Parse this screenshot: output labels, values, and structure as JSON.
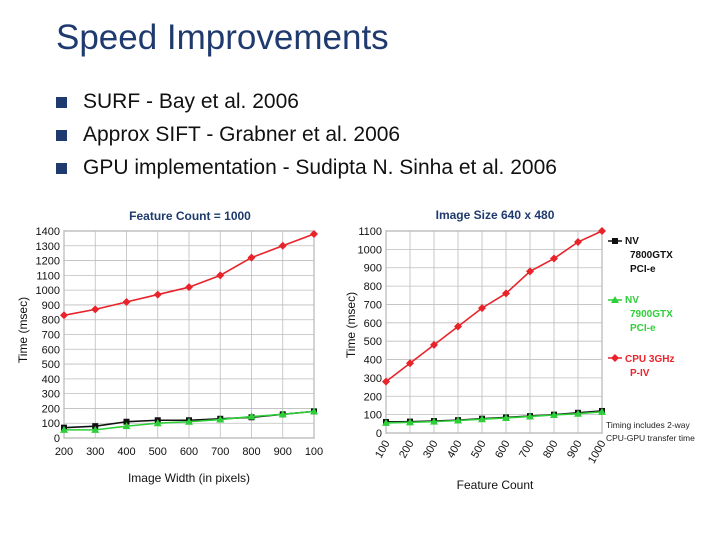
{
  "slide": {
    "title": "Speed Improvements",
    "bullets": [
      "SURF - Bay et al. 2006",
      "Approx SIFT - Grabner et al. 2006",
      "GPU implementation - Sudipta N. Sinha et al. 2006"
    ],
    "colors": {
      "title": "#1f3a6e",
      "bullet": "#1f3a6e",
      "red": "#e8232a",
      "black": "#111111",
      "green": "#2fcf3a"
    }
  },
  "chart_data": [
    {
      "type": "line",
      "title": "Feature Count = 1000",
      "xlabel": "Image Width (in pixels)",
      "ylabel": "Time (msec)",
      "categories": [
        "200",
        "300",
        "400",
        "500",
        "600",
        "700",
        "800",
        "900",
        "100"
      ],
      "yticks": [
        "0",
        "100",
        "200",
        "300",
        "400",
        "500",
        "600",
        "700",
        "800",
        "900",
        "1000",
        "1100",
        "1200",
        "1300",
        "1400"
      ],
      "ylim": [
        0,
        1400
      ],
      "grid": true,
      "series": [
        {
          "color": "#e8232a",
          "marker": "diamond",
          "values": [
            830,
            870,
            920,
            970,
            1020,
            1100,
            1220,
            1300,
            1380
          ]
        },
        {
          "color": "#111111",
          "marker": "square",
          "values": [
            70,
            80,
            110,
            120,
            120,
            130,
            140,
            160,
            180
          ]
        },
        {
          "color": "#2fcf3a",
          "marker": "triangle",
          "values": [
            55,
            55,
            80,
            100,
            110,
            125,
            145,
            160,
            180
          ]
        }
      ]
    },
    {
      "type": "line",
      "title": "Image Size 640 x 480",
      "xlabel": "Feature Count",
      "ylabel": "Time (msec)",
      "categories": [
        "100",
        "200",
        "300",
        "400",
        "500",
        "600",
        "700",
        "800",
        "900",
        "1000"
      ],
      "yticks": [
        "0",
        "100",
        "200",
        "300",
        "400",
        "500",
        "600",
        "700",
        "800",
        "900",
        "1000",
        "1100"
      ],
      "ylim": [
        0,
        1100
      ],
      "grid": true,
      "legend_position": "right",
      "legend": [
        "NV 7800GTX PCI-e",
        "NV 7900GTX PCI-e",
        "CPU 3GHz P-IV"
      ],
      "note": "Timing includes 2-way CPU-GPU transfer time",
      "series": [
        {
          "color": "#111111",
          "marker": "square",
          "values": [
            60,
            62,
            65,
            70,
            78,
            85,
            92,
            100,
            110,
            120
          ]
        },
        {
          "color": "#2fcf3a",
          "marker": "triangle",
          "values": [
            55,
            58,
            62,
            68,
            75,
            82,
            90,
            98,
            105,
            115
          ]
        },
        {
          "color": "#e8232a",
          "marker": "diamond",
          "values": [
            280,
            380,
            480,
            580,
            680,
            760,
            880,
            950,
            1040,
            1100
          ]
        }
      ]
    }
  ]
}
